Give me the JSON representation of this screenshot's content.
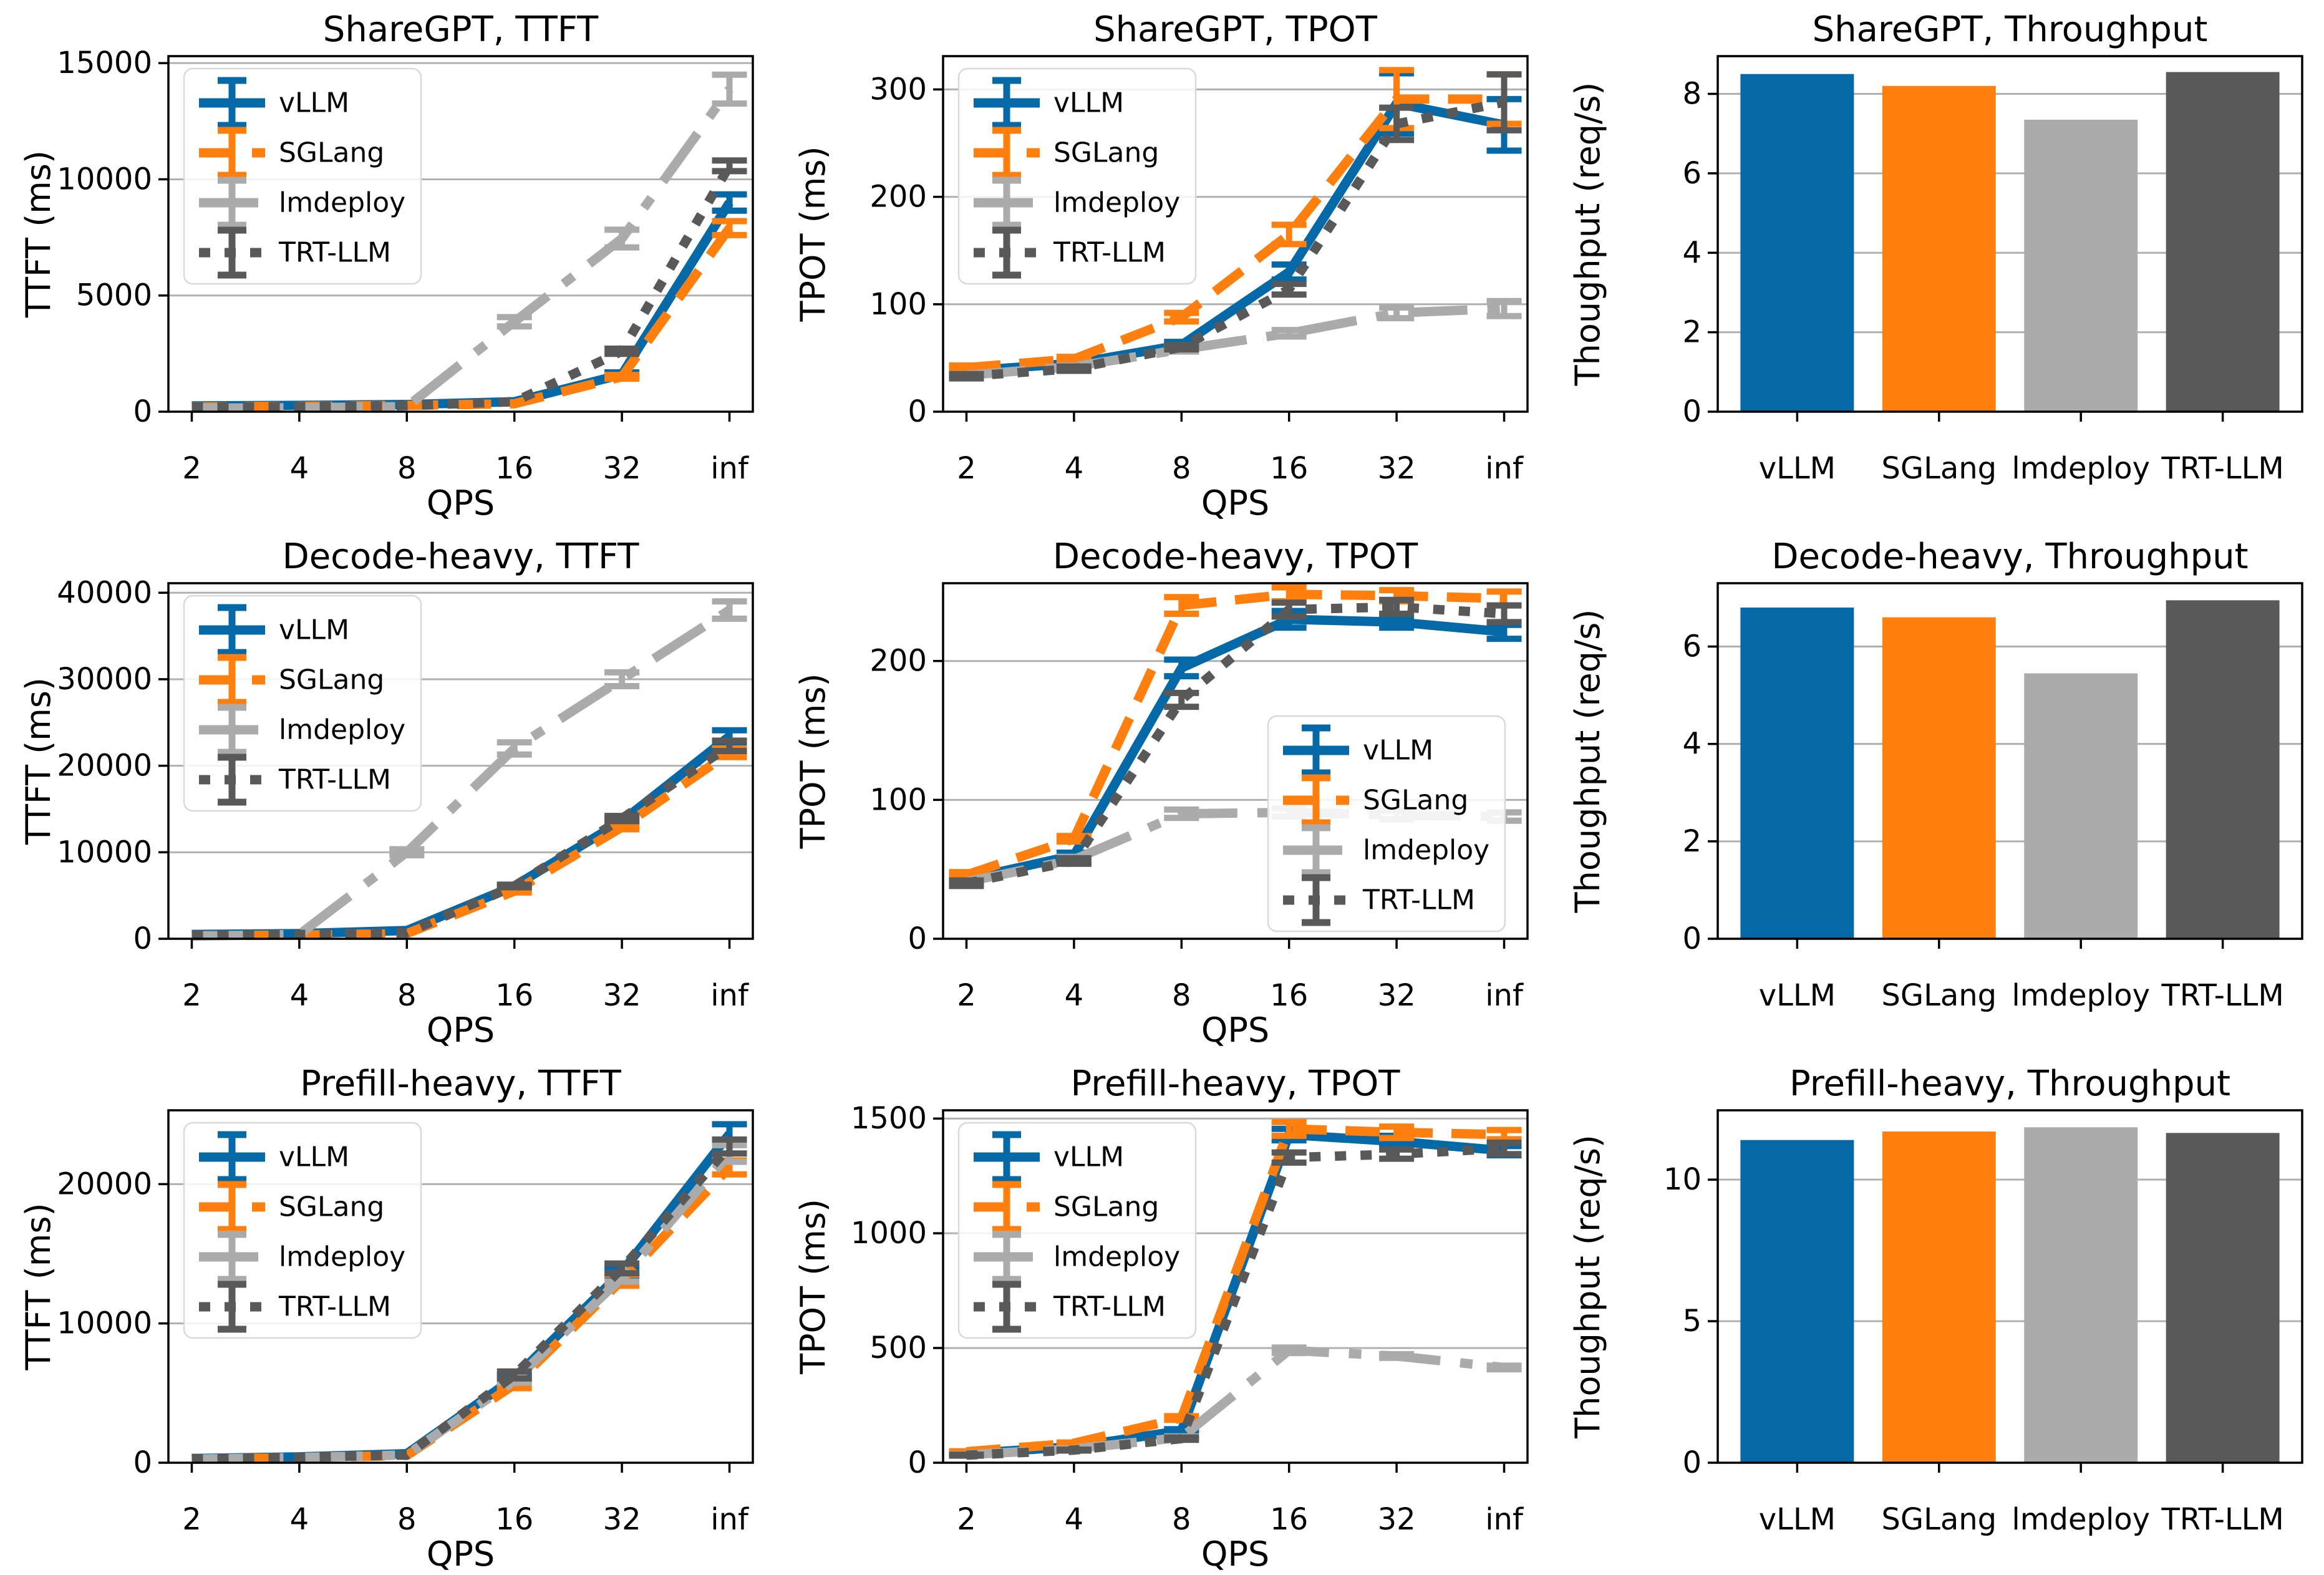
{
  "figure": {
    "frameworks": [
      "vLLM",
      "SGLang",
      "lmdeploy",
      "TRT-LLM"
    ],
    "palette": {
      "vLLM": "#0569a8",
      "SGLang": "#ff7f0e",
      "lmdeploy": "#ababab",
      "TRT-LLM": "#595959"
    },
    "grid_color": "#b0b0b0",
    "xlabel": "QPS"
  },
  "chart_data": [
    {
      "type": "line",
      "title": "ShareGPT, TTFT",
      "xlabel": "QPS",
      "ylabel": "TTFT (ms)",
      "x_values": [
        2,
        4,
        8,
        16,
        32,
        "inf"
      ],
      "x_labels": [
        "2",
        "4",
        "8",
        "16",
        "32",
        "inf"
      ],
      "x_scale": "log2",
      "yticks": [
        0,
        5000,
        10000,
        15000
      ],
      "ymax": 15300,
      "grid": true,
      "legend_loc": "upper-left",
      "series": [
        {
          "name": "vLLM",
          "color": "#0569a8",
          "dash": null,
          "values": [
            250,
            270,
            310,
            430,
            1600,
            9000
          ],
          "yerr": [
            0,
            0,
            0,
            0,
            90,
            350
          ]
        },
        {
          "name": "SGLang",
          "color": "#ff7f0e",
          "dash": "55 30",
          "values": [
            210,
            230,
            270,
            340,
            1500,
            7900
          ],
          "yerr": [
            0,
            0,
            0,
            0,
            80,
            300
          ]
        },
        {
          "name": "lmdeploy",
          "color": "#ababab",
          "dash": "95 32 20 32",
          "values": [
            150,
            170,
            220,
            3870,
            7450,
            13880
          ],
          "yerr": [
            0,
            0,
            0,
            200,
            380,
            620
          ]
        },
        {
          "name": "TRT-LLM",
          "color": "#595959",
          "dash": "18 23",
          "values": [
            200,
            220,
            260,
            430,
            2600,
            10580
          ],
          "yerr": [
            0,
            0,
            0,
            0,
            110,
            230
          ]
        }
      ]
    },
    {
      "type": "line",
      "title": "ShareGPT, TPOT",
      "xlabel": "QPS",
      "ylabel": "TPOT (ms)",
      "x_values": [
        2,
        4,
        8,
        16,
        32,
        "inf"
      ],
      "x_labels": [
        "2",
        "4",
        "8",
        "16",
        "32",
        "inf"
      ],
      "x_scale": "log2",
      "yticks": [
        0,
        100,
        200,
        300
      ],
      "ymax": 331,
      "grid": true,
      "legend_loc": "upper-left",
      "series": [
        {
          "name": "vLLM",
          "color": "#0569a8",
          "dash": null,
          "values": [
            38,
            45,
            62,
            130,
            287,
            267
          ],
          "yerr": [
            2,
            2,
            3,
            7,
            28,
            24
          ]
        },
        {
          "name": "SGLang",
          "color": "#ff7f0e",
          "dash": "55 30",
          "values": [
            41,
            49,
            88,
            165,
            291,
            291
          ],
          "yerr": [
            2,
            2,
            4,
            9,
            27,
            23
          ]
        },
        {
          "name": "lmdeploy",
          "color": "#ababab",
          "dash": "95 32 20 32",
          "values": [
            34,
            42,
            58,
            73,
            92,
            96
          ],
          "yerr": [
            1,
            1,
            2,
            3,
            5,
            7
          ]
        },
        {
          "name": "TRT-LLM",
          "color": "#595959",
          "dash": "18 23",
          "values": [
            33,
            40,
            60,
            114,
            268,
            288
          ],
          "yerr": [
            2,
            2,
            2,
            5,
            15,
            26
          ]
        }
      ]
    },
    {
      "type": "bar",
      "title": "ShareGPT, Throughput",
      "ylabel": "Thoughput (req/s)",
      "categories": [
        "vLLM",
        "SGLang",
        "lmdeploy",
        "TRT-LLM"
      ],
      "values": [
        8.5,
        8.2,
        7.35,
        8.55
      ],
      "colors": [
        "#0569a8",
        "#ff7f0e",
        "#ababab",
        "#595959"
      ],
      "yticks": [
        0,
        2,
        4,
        6,
        8
      ],
      "ymax": 8.95,
      "grid": true,
      "legend_loc": null
    },
    {
      "type": "line",
      "title": "Decode-heavy, TTFT",
      "xlabel": "QPS",
      "ylabel": "TTFT (ms)",
      "x_values": [
        2,
        4,
        8,
        16,
        32,
        "inf"
      ],
      "x_labels": [
        "2",
        "4",
        "8",
        "16",
        "32",
        "inf"
      ],
      "x_scale": "log2",
      "yticks": [
        0,
        10000,
        20000,
        30000,
        40000
      ],
      "ymax": 41100,
      "grid": true,
      "legend_loc": "upper-left",
      "series": [
        {
          "name": "vLLM",
          "color": "#0569a8",
          "dash": null,
          "values": [
            500,
            600,
            950,
            6100,
            13600,
            23400
          ],
          "yerr": [
            0,
            0,
            0,
            150,
            250,
            700
          ]
        },
        {
          "name": "SGLang",
          "color": "#ff7f0e",
          "dash": "55 30",
          "values": [
            350,
            420,
            600,
            5500,
            12900,
            21500
          ],
          "yerr": [
            0,
            0,
            0,
            150,
            250,
            500
          ]
        },
        {
          "name": "lmdeploy",
          "color": "#ababab",
          "dash": "95 32 20 32",
          "values": [
            300,
            500,
            10000,
            22000,
            30000,
            38000
          ],
          "yerr": [
            0,
            0,
            350,
            700,
            800,
            1000
          ]
        },
        {
          "name": "TRT-LLM",
          "color": "#595959",
          "dash": "18 23",
          "values": [
            420,
            500,
            700,
            6100,
            13900,
            22300
          ],
          "yerr": [
            0,
            0,
            0,
            150,
            300,
            600
          ]
        }
      ]
    },
    {
      "type": "line",
      "title": "Decode-heavy, TPOT",
      "xlabel": "QPS",
      "ylabel": "TPOT (ms)",
      "x_values": [
        2,
        4,
        8,
        16,
        32,
        "inf"
      ],
      "x_labels": [
        "2",
        "4",
        "8",
        "16",
        "32",
        "inf"
      ],
      "x_scale": "log2",
      "yticks": [
        0,
        100,
        200
      ],
      "ymax": 256,
      "grid": true,
      "legend_loc": "lower-right",
      "series": [
        {
          "name": "vLLM",
          "color": "#0569a8",
          "dash": null,
          "values": [
            43,
            60,
            195,
            230,
            228,
            221
          ],
          "yerr": [
            2,
            2,
            6,
            6,
            4,
            5
          ]
        },
        {
          "name": "SGLang",
          "color": "#ff7f0e",
          "dash": "55 30",
          "values": [
            46,
            72,
            240,
            248,
            247,
            245
          ],
          "yerr": [
            2,
            2,
            6,
            5,
            4,
            5
          ]
        },
        {
          "name": "lmdeploy",
          "color": "#ababab",
          "dash": "95 32 20 32",
          "values": [
            41,
            57,
            90,
            91,
            89,
            88
          ],
          "yerr": [
            1,
            2,
            3,
            3,
            3,
            3
          ]
        },
        {
          "name": "TRT-LLM",
          "color": "#595959",
          "dash": "18 23",
          "values": [
            40,
            56,
            172,
            237,
            239,
            234
          ],
          "yerr": [
            2,
            2,
            5,
            5,
            5,
            6
          ]
        }
      ]
    },
    {
      "type": "bar",
      "title": "Decode-heavy, Throughput",
      "ylabel": "Thoughput (req/s)",
      "categories": [
        "vLLM",
        "SGLang",
        "lmdeploy",
        "TRT-LLM"
      ],
      "values": [
        6.8,
        6.6,
        5.45,
        6.95
      ],
      "colors": [
        "#0569a8",
        "#ff7f0e",
        "#ababab",
        "#595959"
      ],
      "yticks": [
        0,
        2,
        4,
        6
      ],
      "ymax": 7.3,
      "grid": true,
      "legend_loc": null
    },
    {
      "type": "line",
      "title": "Prefill-heavy, TTFT",
      "xlabel": "QPS",
      "ylabel": "TTFT (ms)",
      "x_values": [
        2,
        4,
        8,
        16,
        32,
        "inf"
      ],
      "x_labels": [
        "2",
        "4",
        "8",
        "16",
        "32",
        "inf"
      ],
      "x_scale": "log2",
      "yticks": [
        0,
        10000,
        20000
      ],
      "ymax": 25300,
      "grid": true,
      "legend_loc": "upper-left",
      "series": [
        {
          "name": "vLLM",
          "color": "#0569a8",
          "dash": null,
          "values": [
            300,
            420,
            650,
            6100,
            13700,
            23600
          ],
          "yerr": [
            0,
            0,
            0,
            150,
            300,
            700
          ]
        },
        {
          "name": "SGLang",
          "color": "#ff7f0e",
          "dash": "55 30",
          "values": [
            260,
            360,
            520,
            5600,
            13100,
            21200
          ],
          "yerr": [
            0,
            0,
            0,
            250,
            400,
            500
          ]
        },
        {
          "name": "lmdeploy",
          "color": "#ababab",
          "dash": "95 32 20 32",
          "values": [
            260,
            370,
            560,
            5900,
            13300,
            22200
          ],
          "yerr": [
            0,
            0,
            0,
            150,
            300,
            600
          ]
        },
        {
          "name": "TRT-LLM",
          "color": "#595959",
          "dash": "18 23",
          "values": [
            300,
            400,
            550,
            6300,
            13950,
            22700
          ],
          "yerr": [
            0,
            0,
            0,
            250,
            350,
            500
          ]
        }
      ]
    },
    {
      "type": "line",
      "title": "Prefill-heavy, TPOT",
      "xlabel": "QPS",
      "ylabel": "TPOT (ms)",
      "x_values": [
        2,
        4,
        8,
        16,
        32,
        "inf"
      ],
      "x_labels": [
        "2",
        "4",
        "8",
        "16",
        "32",
        "inf"
      ],
      "x_scale": "log2",
      "yticks": [
        0,
        500,
        1000,
        1500
      ],
      "ymax": 1536,
      "grid": true,
      "legend_loc": "upper-left",
      "series": [
        {
          "name": "vLLM",
          "color": "#0569a8",
          "dash": null,
          "values": [
            40,
            70,
            140,
            1430,
            1400,
            1360
          ],
          "yerr": [
            2,
            3,
            6,
            25,
            25,
            20
          ]
        },
        {
          "name": "SGLang",
          "color": "#ff7f0e",
          "dash": "55 30",
          "values": [
            48,
            85,
            195,
            1455,
            1440,
            1430
          ],
          "yerr": [
            2,
            3,
            8,
            30,
            25,
            20
          ]
        },
        {
          "name": "lmdeploy",
          "color": "#ababab",
          "dash": "95 32 20 32",
          "values": [
            35,
            60,
            110,
            490,
            465,
            415
          ],
          "yerr": [
            2,
            2,
            5,
            12,
            8,
            8
          ]
        },
        {
          "name": "TRT-LLM",
          "color": "#595959",
          "dash": "18 23",
          "values": [
            33,
            55,
            105,
            1330,
            1345,
            1370
          ],
          "yerr": [
            2,
            2,
            5,
            22,
            20,
            25
          ]
        }
      ]
    },
    {
      "type": "bar",
      "title": "Prefill-heavy, Throughput",
      "ylabel": "Thoughput (req/s)",
      "categories": [
        "vLLM",
        "SGLang",
        "lmdeploy",
        "TRT-LLM"
      ],
      "values": [
        11.4,
        11.7,
        11.85,
        11.65
      ],
      "colors": [
        "#0569a8",
        "#ff7f0e",
        "#ababab",
        "#595959"
      ],
      "yticks": [
        0,
        5,
        10
      ],
      "ymax": 12.45,
      "grid": true,
      "legend_loc": null
    }
  ]
}
